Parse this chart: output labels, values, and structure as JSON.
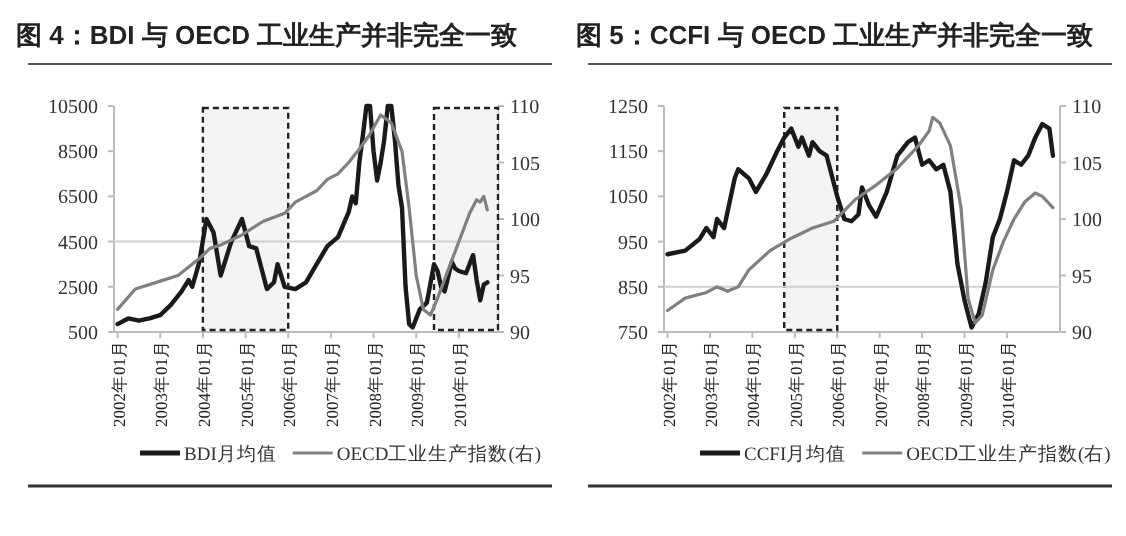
{
  "chart_data": [
    {
      "type": "line",
      "title": "图 4：BDI 与 OECD 工业生产并非完全一致",
      "legend": "bottom",
      "grid": false,
      "xlim": [
        "2001-12",
        "2010-12"
      ],
      "xticks": [
        {
          "value": "2002-01",
          "label": "2002年01月"
        },
        {
          "value": "2003-01",
          "label": "2003年01月"
        },
        {
          "value": "2004-01",
          "label": "2004年01月"
        },
        {
          "value": "2005-01",
          "label": "2005年01月"
        },
        {
          "value": "2006-01",
          "label": "2006年01月"
        },
        {
          "value": "2007-01",
          "label": "2007年01月"
        },
        {
          "value": "2008-01",
          "label": "2008年01月"
        },
        {
          "value": "2009-01",
          "label": "2009年01月"
        },
        {
          "value": "2010-01",
          "label": "2010年01月"
        }
      ],
      "ylim": [
        500,
        10500
      ],
      "yticks": [
        500,
        2500,
        4500,
        6500,
        8500,
        10500
      ],
      "y2lim": [
        90,
        110
      ],
      "y2ticks": [
        90,
        95,
        100,
        105,
        110
      ],
      "ref_lines": [
        {
          "axis": "y",
          "value": 4500,
          "color": "#d0d0d0"
        }
      ],
      "bands": [
        {
          "axis": "x",
          "from": "2004-01",
          "to": "2006-01",
          "color": "#f4f4f4"
        },
        {
          "axis": "x",
          "from": "2009-06",
          "to": "2010-12",
          "color": "#f4f4f4"
        }
      ],
      "series": [
        {
          "name": "BDI月均值",
          "color": "#1a1a1a",
          "x": [
            "2002-01",
            "2002-04",
            "2002-07",
            "2002-10",
            "2003-01",
            "2003-04",
            "2003-07",
            "2003-09",
            "2003-10",
            "2003-12",
            "2004-02",
            "2004-04",
            "2004-06",
            "2004-09",
            "2004-12",
            "2005-02",
            "2005-04",
            "2005-07",
            "2005-09",
            "2005-10",
            "2005-12",
            "2006-03",
            "2006-06",
            "2006-09",
            "2006-12",
            "2007-03",
            "2007-06",
            "2007-07",
            "2007-08",
            "2007-09",
            "2007-10",
            "2007-11",
            "2007-12",
            "2008-01",
            "2008-02",
            "2008-03",
            "2008-04",
            "2008-05",
            "2008-06",
            "2008-07",
            "2008-08",
            "2008-09",
            "2008-10",
            "2008-11",
            "2008-12",
            "2009-02",
            "2009-04",
            "2009-06",
            "2009-07",
            "2009-08",
            "2009-09",
            "2009-11",
            "2009-12",
            "2010-01",
            "2010-03",
            "2010-05",
            "2010-06",
            "2010-07",
            "2010-08",
            "2010-09"
          ],
          "values": [
            850,
            1100,
            1000,
            1100,
            1250,
            1700,
            2300,
            2800,
            2500,
            3600,
            5500,
            4900,
            3000,
            4500,
            5500,
            4300,
            4200,
            2400,
            2700,
            3500,
            2500,
            2400,
            2700,
            3500,
            4300,
            4700,
            5800,
            6500,
            6200,
            8000,
            9200,
            10500,
            10500,
            8500,
            7200,
            8000,
            9000,
            10500,
            10500,
            9000,
            7000,
            6000,
            2500,
            850,
            700,
            1500,
            1800,
            3500,
            3200,
            2500,
            2300,
            3600,
            3300,
            3200,
            3100,
            3900,
            2800,
            1900,
            2600,
            2700
          ]
        },
        {
          "name": "OECD工业生产指数(右)",
          "color": "#808080",
          "axis": "y2",
          "x": [
            "2002-01",
            "2002-06",
            "2003-01",
            "2003-06",
            "2003-12",
            "2004-03",
            "2004-06",
            "2004-12",
            "2005-06",
            "2005-12",
            "2006-03",
            "2006-06",
            "2006-09",
            "2006-12",
            "2007-03",
            "2007-06",
            "2007-09",
            "2007-12",
            "2008-01",
            "2008-03",
            "2008-06",
            "2008-09",
            "2008-11",
            "2009-01",
            "2009-03",
            "2009-05",
            "2009-07",
            "2009-10",
            "2010-01",
            "2010-04",
            "2010-06",
            "2010-07",
            "2010-08",
            "2010-09"
          ],
          "values": [
            92,
            93.8,
            94.5,
            95,
            96.5,
            97.4,
            97.7,
            98.6,
            99.8,
            100.5,
            101.5,
            102,
            102.5,
            103.5,
            104,
            105,
            106.2,
            107.5,
            108.1,
            109.2,
            108.5,
            106,
            101,
            95,
            92,
            91.5,
            93,
            95.5,
            98,
            100.5,
            101.7,
            101.5,
            102,
            100.8
          ]
        }
      ]
    },
    {
      "type": "line",
      "title": "图 5：CCFI 与 OECD 工业生产并非完全一致",
      "legend": "bottom",
      "grid": false,
      "xlim": [
        "2001-12",
        "2011-04"
      ],
      "xticks": [
        {
          "value": "2002-01",
          "label": "2002年01月"
        },
        {
          "value": "2003-01",
          "label": "2003年01月"
        },
        {
          "value": "2004-01",
          "label": "2004年01月"
        },
        {
          "value": "2005-01",
          "label": "2005年01月"
        },
        {
          "value": "2006-01",
          "label": "2006年01月"
        },
        {
          "value": "2007-01",
          "label": "2007年01月"
        },
        {
          "value": "2008-01",
          "label": "2008年01月"
        },
        {
          "value": "2009-01",
          "label": "2009年01月"
        },
        {
          "value": "2010-01",
          "label": "2010年01月"
        }
      ],
      "ylim": [
        750,
        1250
      ],
      "yticks": [
        750,
        850,
        950,
        1050,
        1150,
        1250
      ],
      "y2lim": [
        90,
        110
      ],
      "y2ticks": [
        90,
        95,
        100,
        105,
        110
      ],
      "ref_lines": [
        {
          "axis": "y",
          "value": 850,
          "color": "#d0d0d0"
        }
      ],
      "bands": [
        {
          "axis": "x",
          "from": "2004-10",
          "to": "2006-01",
          "color": "#f4f4f4"
        }
      ],
      "series": [
        {
          "name": "CCFI月均值",
          "color": "#1a1a1a",
          "x": [
            "2002-01",
            "2002-06",
            "2002-10",
            "2002-12",
            "2003-02",
            "2003-03",
            "2003-05",
            "2003-08",
            "2003-09",
            "2003-12",
            "2004-02",
            "2004-05",
            "2004-08",
            "2004-10",
            "2004-12",
            "2005-02",
            "2005-03",
            "2005-05",
            "2005-06",
            "2005-08",
            "2005-10",
            "2006-01",
            "2006-03",
            "2006-05",
            "2006-07",
            "2006-08",
            "2006-10",
            "2006-12",
            "2007-03",
            "2007-06",
            "2007-09",
            "2007-11",
            "2008-01",
            "2008-03",
            "2008-05",
            "2008-07",
            "2008-09",
            "2008-11",
            "2009-01",
            "2009-03",
            "2009-05",
            "2009-07",
            "2009-09",
            "2009-11",
            "2010-01",
            "2010-03",
            "2010-05",
            "2010-07",
            "2010-09",
            "2010-11",
            "2011-01",
            "2011-02"
          ],
          "values": [
            922,
            930,
            955,
            980,
            960,
            1000,
            980,
            1090,
            1110,
            1090,
            1060,
            1100,
            1150,
            1180,
            1200,
            1160,
            1180,
            1140,
            1170,
            1150,
            1140,
            1050,
            1000,
            995,
            1010,
            1070,
            1030,
            1005,
            1060,
            1140,
            1170,
            1180,
            1120,
            1130,
            1110,
            1120,
            1060,
            900,
            820,
            760,
            790,
            860,
            960,
            1000,
            1060,
            1130,
            1120,
            1140,
            1180,
            1210,
            1200,
            1140
          ]
        },
        {
          "name": "OECD工业生产指数(右)",
          "color": "#808080",
          "axis": "y2",
          "x": [
            "2002-01",
            "2002-06",
            "2002-12",
            "2003-03",
            "2003-06",
            "2003-09",
            "2003-12",
            "2004-06",
            "2004-12",
            "2005-06",
            "2005-12",
            "2006-06",
            "2006-12",
            "2007-06",
            "2007-12",
            "2008-03",
            "2008-04",
            "2008-06",
            "2008-09",
            "2008-12",
            "2009-02",
            "2009-04",
            "2009-06",
            "2009-09",
            "2009-12",
            "2010-03",
            "2010-06",
            "2010-09",
            "2010-11",
            "2011-02"
          ],
          "values": [
            91.9,
            93,
            93.5,
            94,
            93.6,
            94,
            95.5,
            97.2,
            98.3,
            99.2,
            99.8,
            101.7,
            103,
            104.5,
            106.5,
            107.8,
            109,
            108.5,
            106.5,
            101,
            93,
            90.8,
            91.5,
            95.5,
            98,
            100,
            101.5,
            102.3,
            102,
            101
          ]
        }
      ]
    }
  ]
}
